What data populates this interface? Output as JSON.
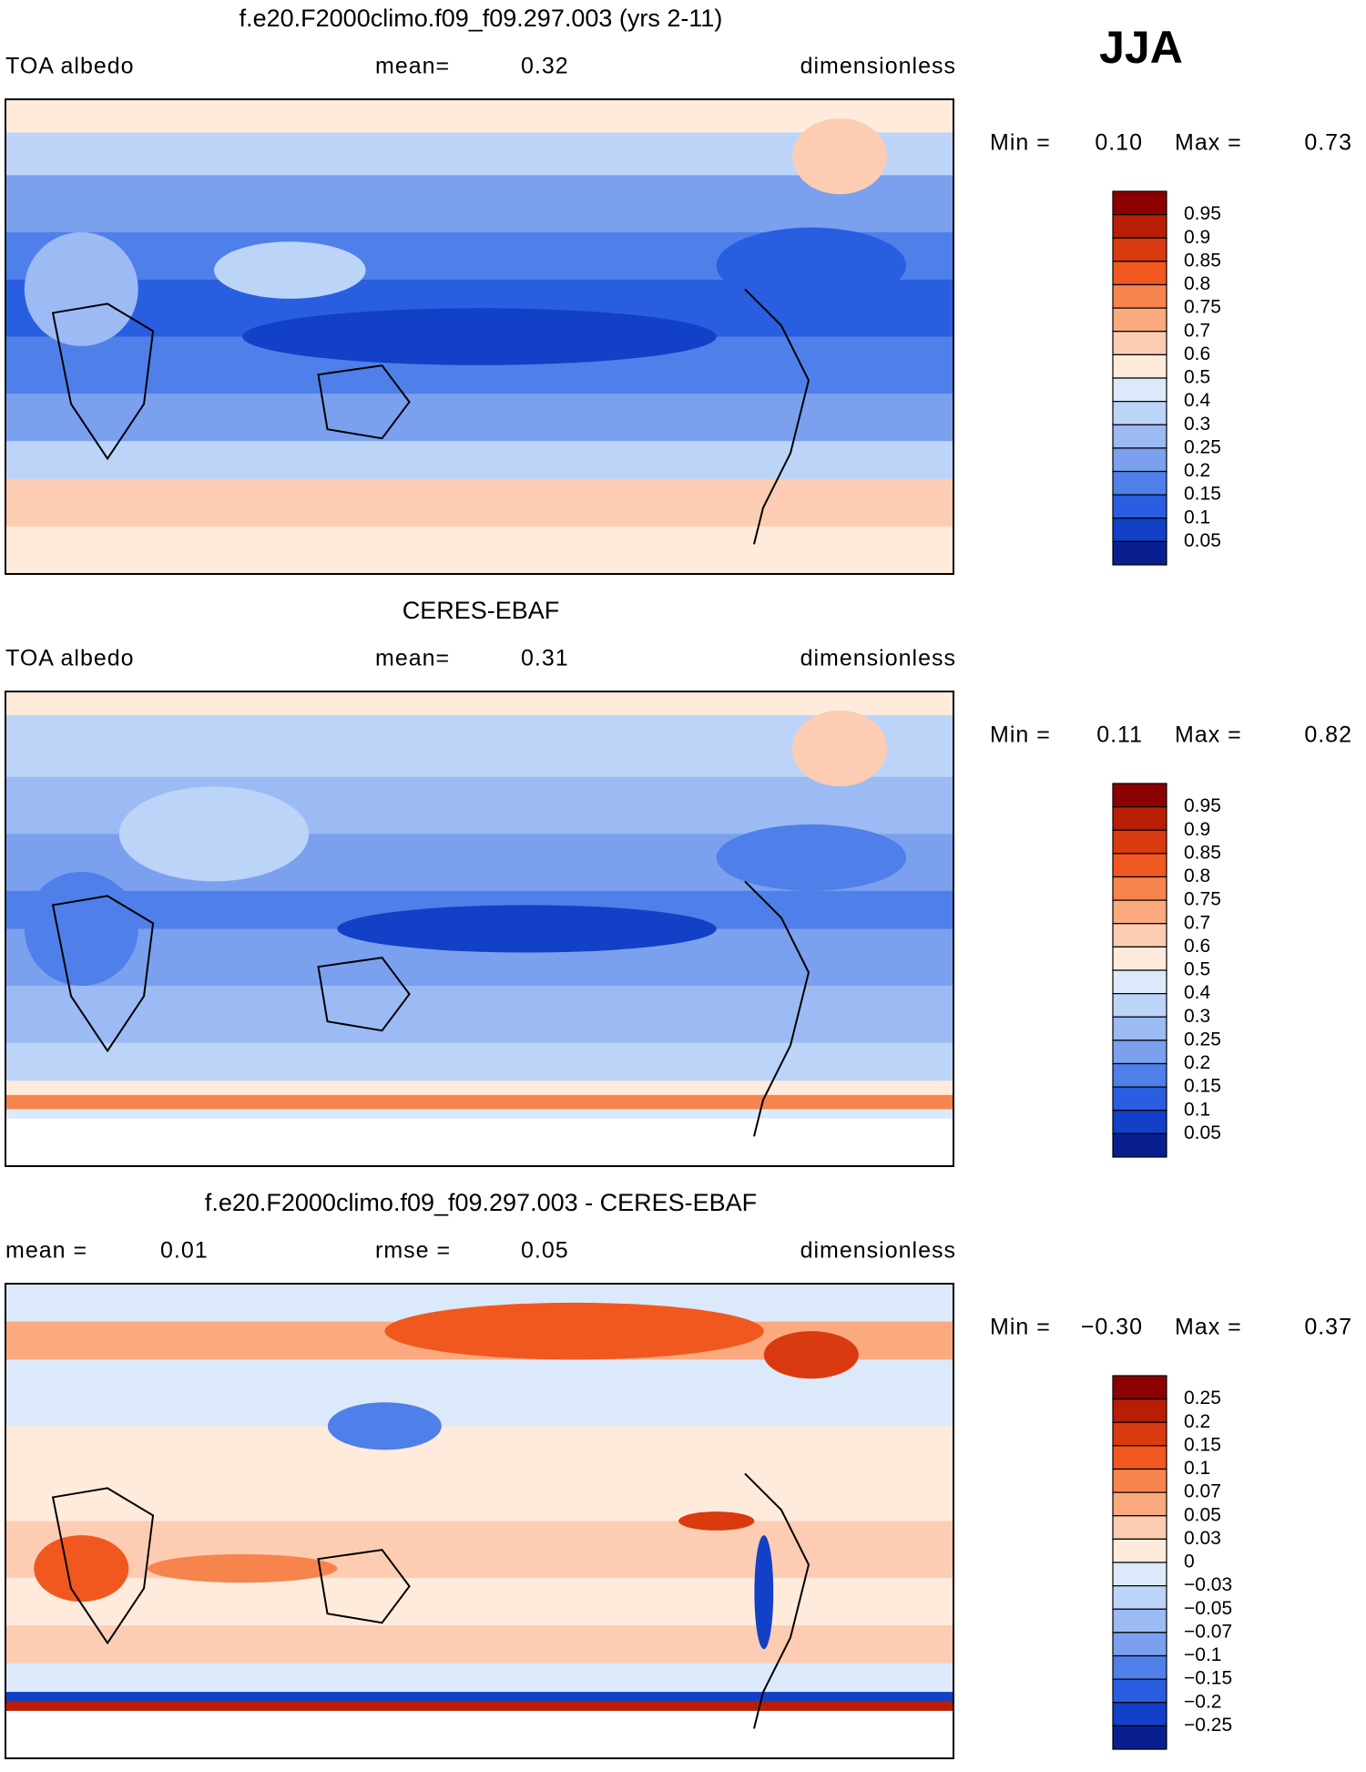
{
  "season": "JJA",
  "panels": [
    {
      "title": "f.e20.F2000climo.f09_f09.297.003 (yrs 2-11)",
      "left_label": "TOA albedo",
      "center_label": "mean=",
      "center_value": "0.32",
      "right_label": "dimensionless",
      "min_label": "Min =",
      "min": "0.10",
      "max_label": "Max =",
      "max": "0.73",
      "colorbar": {
        "labels": [
          "0.95",
          "0.9",
          "0.85",
          "0.8",
          "0.75",
          "0.7",
          "0.6",
          "0.5",
          "0.4",
          "0.3",
          "0.25",
          "0.2",
          "0.15",
          "0.1",
          "0.05"
        ],
        "colors": [
          "#8b0000",
          "#b81e05",
          "#da3a0f",
          "#f1581f",
          "#f7844d",
          "#fbaa80",
          "#fdcdb3",
          "#feebdc",
          "#dce9fb",
          "#bcd4f8",
          "#9cbaf3",
          "#7aa0ee",
          "#4f7fe8",
          "#2a5ee0",
          "#1240c7",
          "#0a1f8f"
        ]
      }
    },
    {
      "title": "CERES-EBAF",
      "left_label": "TOA albedo",
      "center_label": "mean=",
      "center_value": "0.31",
      "right_label": "dimensionless",
      "min_label": "Min =",
      "min": "0.11",
      "max_label": "Max =",
      "max": "0.82",
      "colorbar": {
        "labels": [
          "0.95",
          "0.9",
          "0.85",
          "0.8",
          "0.75",
          "0.7",
          "0.6",
          "0.5",
          "0.4",
          "0.3",
          "0.25",
          "0.2",
          "0.15",
          "0.1",
          "0.05"
        ],
        "colors": [
          "#8b0000",
          "#b81e05",
          "#da3a0f",
          "#f1581f",
          "#f7844d",
          "#fbaa80",
          "#fdcdb3",
          "#feebdc",
          "#dce9fb",
          "#bcd4f8",
          "#9cbaf3",
          "#7aa0ee",
          "#4f7fe8",
          "#2a5ee0",
          "#1240c7",
          "#0a1f8f"
        ]
      }
    },
    {
      "title": "f.e20.F2000climo.f09_f09.297.003 - CERES-EBAF",
      "left_label": "mean =",
      "left_value": "0.01",
      "center_label": "rmse =",
      "center_value": "0.05",
      "right_label": "dimensionless",
      "min_label": "Min =",
      "min": "−0.30",
      "max_label": "Max =",
      "max": "0.37",
      "colorbar": {
        "labels": [
          "0.25",
          "0.2",
          "0.15",
          "0.1",
          "0.07",
          "0.05",
          "0.03",
          "0",
          "−0.03",
          "−0.05",
          "−0.07",
          "−0.1",
          "−0.15",
          "−0.2",
          "−0.25"
        ],
        "colors": [
          "#8b0000",
          "#b81e05",
          "#da3a0f",
          "#f1581f",
          "#f7844d",
          "#fbaa80",
          "#fdcdb3",
          "#feebdc",
          "#dce9fb",
          "#bcd4f8",
          "#9cbaf3",
          "#7aa0ee",
          "#4f7fe8",
          "#2a5ee0",
          "#1240c7",
          "#0a1f8f"
        ]
      }
    }
  ]
}
